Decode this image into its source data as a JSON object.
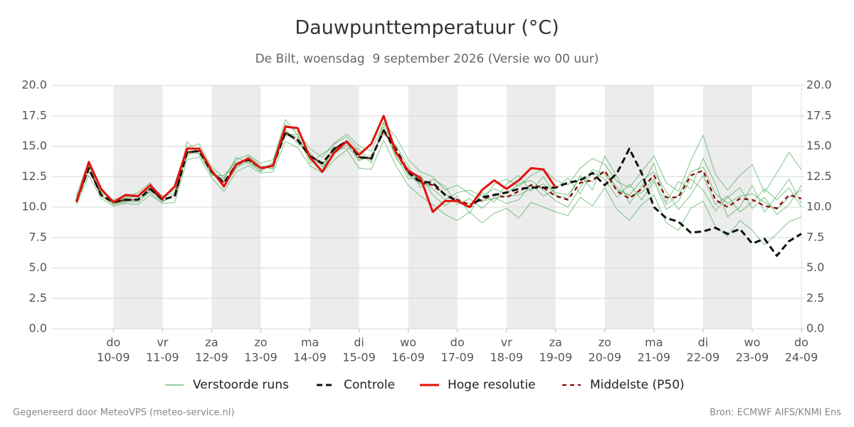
{
  "chart_data": {
    "type": "line",
    "title": "Dauwpunttemperatuur (°C)",
    "subtitle": "De Bilt, woensdag  9 september 2026 (Versie wo 00 uur)",
    "footer_left": "Gegenereerd door MeteoVPS (meteo-service.nl)",
    "footer_right": "Bron: ECMWF AIFS/KNMI Ens",
    "grid": true,
    "xlim": [
      8.75,
      24
    ],
    "xticks": [
      {
        "value": 10,
        "label": "do",
        "sublabel": "10-09"
      },
      {
        "value": 11,
        "label": "vr",
        "sublabel": "11-09"
      },
      {
        "value": 12,
        "label": "za",
        "sublabel": "12-09"
      },
      {
        "value": 13,
        "label": "zo",
        "sublabel": "13-09"
      },
      {
        "value": 14,
        "label": "ma",
        "sublabel": "14-09"
      },
      {
        "value": 15,
        "label": "di",
        "sublabel": "15-09"
      },
      {
        "value": 16,
        "label": "wo",
        "sublabel": "16-09"
      },
      {
        "value": 17,
        "label": "do",
        "sublabel": "17-09"
      },
      {
        "value": 18,
        "label": "vr",
        "sublabel": "18-09"
      },
      {
        "value": 19,
        "label": "za",
        "sublabel": "19-09"
      },
      {
        "value": 20,
        "label": "zo",
        "sublabel": "20-09"
      },
      {
        "value": 21,
        "label": "ma",
        "sublabel": "21-09"
      },
      {
        "value": 22,
        "label": "di",
        "sublabel": "22-09"
      },
      {
        "value": 23,
        "label": "wo",
        "sublabel": "23-09"
      },
      {
        "value": 24,
        "label": "do",
        "sublabel": "24-09"
      }
    ],
    "ylim": [
      0,
      20
    ],
    "yticks": [
      {
        "value": 0,
        "label": "0.0"
      },
      2.5,
      {
        "value": 5,
        "label": "5.0"
      },
      7.5,
      {
        "value": 10,
        "label": "10.0"
      },
      12.5,
      {
        "value": 15,
        "label": "15.0"
      },
      17.5,
      {
        "value": 20,
        "label": "20.0"
      }
    ],
    "y2lim": [
      0,
      20
    ],
    "y2ticks": [
      {
        "value": 0,
        "label": "0.0"
      },
      2.5,
      {
        "value": 5,
        "label": "5.0"
      },
      7.5,
      {
        "value": 10,
        "label": "10.0"
      },
      12.5,
      {
        "value": 15,
        "label": "15.0"
      },
      17.5,
      {
        "value": 20,
        "label": "20.0"
      }
    ],
    "x": [
      9.25,
      9.5,
      9.75,
      10,
      10.25,
      10.5,
      10.75,
      11,
      11.25,
      11.5,
      11.75,
      12,
      12.25,
      12.5,
      12.75,
      13,
      13.25,
      13.5,
      13.75,
      14,
      14.25,
      14.5,
      14.75,
      15,
      15.25,
      15.5,
      15.75,
      16,
      16.25,
      16.5,
      16.75,
      17,
      17.25,
      17.5,
      17.75,
      18,
      18.25,
      18.5,
      18.75,
      19,
      19.25,
      19.5,
      19.75,
      20,
      20.25,
      20.5,
      20.75,
      21,
      21.25,
      21.5,
      21.75,
      22,
      22.25,
      22.5,
      22.75,
      23,
      23.25,
      23.5,
      23.75,
      24
    ],
    "ensemble": {
      "name": "Verstoorde runs",
      "color": "#2e9e3e",
      "members": [
        [
          10.8,
          13.0,
          11.2,
          10.6,
          10.9,
          10.8,
          11.8,
          10.9,
          11.4,
          14.9,
          15.2,
          13.3,
          12.4,
          13.9,
          14.3,
          13.6,
          13.9,
          16.8,
          16.2,
          14.8,
          14.1,
          15.3,
          16.0,
          15.0,
          14.6,
          16.9,
          15.8,
          13.9,
          12.9,
          12.5,
          11.4,
          11.8,
          11.1,
          10.4,
          11.9,
          12.3,
          11.7,
          12.6,
          13.1,
          12.2,
          11.8,
          13.2,
          14.0,
          13.5,
          12.1,
          11.6,
          12.9,
          14.2,
          12.0,
          11.3,
          13.8,
          15.9,
          12.7,
          11.4,
          12.6,
          13.5,
          11.2,
          12.8,
          14.5,
          13.1
        ],
        [
          10.2,
          12.6,
          10.7,
          10.1,
          10.3,
          10.2,
          11.0,
          10.3,
          10.4,
          13.9,
          14.1,
          12.4,
          11.3,
          12.9,
          13.4,
          12.8,
          12.9,
          15.4,
          14.9,
          13.4,
          12.8,
          13.9,
          14.7,
          13.2,
          13.1,
          15.5,
          13.4,
          11.8,
          10.9,
          10.2,
          9.4,
          8.9,
          9.6,
          8.7,
          9.5,
          9.9,
          9.1,
          10.4,
          10.0,
          9.6,
          9.3,
          10.8,
          10.1,
          11.6,
          9.8,
          8.9,
          10.2,
          11.0,
          8.7,
          8.1,
          9.9,
          10.5,
          8.4,
          7.6,
          8.9,
          8.1,
          6.9,
          7.8,
          8.8,
          9.2
        ],
        [
          11.0,
          13.8,
          11.5,
          10.4,
          10.8,
          11.2,
          12.0,
          10.5,
          11.0,
          15.4,
          14.3,
          12.7,
          12.3,
          14.1,
          13.6,
          13.0,
          13.7,
          17.2,
          15.9,
          13.9,
          13.0,
          15.2,
          15.8,
          14.6,
          13.6,
          17.0,
          14.2,
          12.3,
          12.6,
          11.0,
          10.1,
          10.9,
          9.5,
          11.2,
          10.4,
          11.9,
          12.6,
          11.3,
          12.5,
          11.0,
          10.7,
          12.6,
          11.4,
          14.2,
          12.5,
          10.3,
          11.7,
          13.6,
          10.4,
          12.1,
          11.5,
          14.0,
          11.9,
          9.2,
          10.0,
          11.8,
          9.6,
          10.9,
          12.3,
          10.3
        ],
        [
          10.6,
          13.4,
          10.9,
          10.2,
          10.5,
          10.4,
          11.3,
          10.8,
          11.2,
          14.2,
          14.9,
          13.1,
          11.8,
          13.2,
          14.2,
          13.4,
          13.1,
          16.4,
          15.2,
          14.5,
          13.3,
          14.4,
          15.1,
          13.8,
          14.3,
          16.0,
          15.1,
          13.4,
          11.6,
          12.3,
          11.7,
          10.2,
          10.7,
          9.9,
          10.8,
          10.3,
          10.6,
          11.9,
          10.9,
          11.5,
          12.4,
          11.1,
          12.9,
          12.3,
          10.8,
          11.9,
          10.6,
          12.1,
          9.8,
          10.5,
          12.3,
          11.4,
          9.7,
          10.8,
          11.6,
          9.9,
          10.8,
          9.4,
          10.2,
          11.8
        ],
        [
          10.9,
          12.9,
          11.3,
          10.5,
          10.7,
          10.9,
          11.6,
          10.7,
          11.6,
          14.6,
          14.6,
          12.6,
          12.6,
          13.7,
          13.8,
          12.9,
          13.6,
          15.9,
          16.0,
          13.6,
          14.4,
          14.9,
          14.8,
          14.8,
          13.8,
          16.6,
          14.0,
          12.9,
          12.2,
          11.5,
          10.6,
          11.2,
          11.4,
          10.9,
          11.5,
          11.1,
          11.9,
          12.2,
          11.4,
          10.5,
          10.0,
          11.6,
          13.1,
          12.7,
          11.4,
          11.0,
          12.2,
          12.9,
          11.3,
          9.8,
          11.0,
          12.6,
          10.2,
          10.9,
          9.6,
          10.4,
          11.5,
          10.6,
          11.6,
          10.0
        ],
        [
          10.4,
          13.5,
          11.0,
          10.3,
          10.4,
          10.7,
          11.2,
          10.4,
          11.1,
          14.4,
          14.4,
          13.0,
          11.6,
          13.3,
          13.7,
          13.3,
          13.2,
          16.2,
          15.7,
          14.0,
          13.5,
          14.6,
          15.5,
          13.9,
          14.1,
          16.3,
          14.7,
          12.6,
          11.9,
          11.9,
          11.1,
          10.4,
          10.3,
          10.5,
          10.7,
          10.9,
          11.0,
          11.5,
          11.9,
          11.2,
          11.0,
          12.4,
          12.1,
          12.9,
          11.6,
          10.9,
          11.2,
          12.3,
          10.2,
          11.0,
          12.9,
          13.3,
          11.1,
          10.3,
          10.9,
          11.1,
          10.4,
          9.8,
          10.8,
          11.4
        ]
      ]
    },
    "series": [
      {
        "name": "Controle",
        "color": "#111111",
        "dash": true,
        "values": [
          10.5,
          13.2,
          11.0,
          10.4,
          10.6,
          10.6,
          11.5,
          10.6,
          10.9,
          14.5,
          14.6,
          12.9,
          12.0,
          13.5,
          13.9,
          13.2,
          13.4,
          16.1,
          15.5,
          14.2,
          13.6,
          14.8,
          15.4,
          14.1,
          14.0,
          16.3,
          14.8,
          12.9,
          12.1,
          12.0,
          11.0,
          10.5,
          10.0,
          10.8,
          11.0,
          11.2,
          11.5,
          11.6,
          11.6,
          11.6,
          12.0,
          12.2,
          12.8,
          11.8,
          12.8,
          14.8,
          12.8,
          10.0,
          9.1,
          8.8,
          7.9,
          8.0,
          8.3,
          7.8,
          8.2,
          7.0,
          7.4,
          6.0,
          7.2,
          7.8
        ]
      },
      {
        "name": "Hoge resolutie",
        "color": "#e3120b",
        "dash": false,
        "values": [
          10.4,
          13.7,
          11.5,
          10.4,
          11.0,
          10.9,
          11.8,
          10.7,
          11.7,
          14.8,
          14.8,
          13.0,
          11.7,
          13.5,
          14.0,
          13.2,
          13.4,
          16.6,
          16.5,
          14.1,
          12.9,
          14.5,
          15.4,
          14.3,
          15.2,
          17.5,
          14.5,
          13.0,
          12.4,
          9.6,
          10.5,
          10.5,
          10.0,
          11.4,
          12.2,
          11.5,
          12.2,
          13.2,
          13.1,
          11.6,
          null,
          null,
          null,
          null,
          null,
          null,
          null,
          null,
          null,
          null,
          null,
          null,
          null,
          null,
          null,
          null,
          null,
          null,
          null,
          null
        ]
      },
      {
        "name": "Middelste (P50)",
        "color": "#8b0000",
        "dash": true,
        "values": [
          10.5,
          13.2,
          11.0,
          10.4,
          10.6,
          10.6,
          11.5,
          10.6,
          10.9,
          14.5,
          14.6,
          12.9,
          12.0,
          13.5,
          13.9,
          13.2,
          13.4,
          16.1,
          15.5,
          14.2,
          13.6,
          14.8,
          15.4,
          14.1,
          14.0,
          16.3,
          14.5,
          12.8,
          12.0,
          11.8,
          11.0,
          10.6,
          10.2,
          10.6,
          11.0,
          10.8,
          11.3,
          11.8,
          11.6,
          10.9,
          10.6,
          12.0,
          12.2,
          13.0,
          11.3,
          10.7,
          11.5,
          12.6,
          10.8,
          10.8,
          12.6,
          13.0,
          10.6,
          10.0,
          10.7,
          10.6,
          10.1,
          9.9,
          11.0,
          10.7
        ]
      }
    ]
  }
}
